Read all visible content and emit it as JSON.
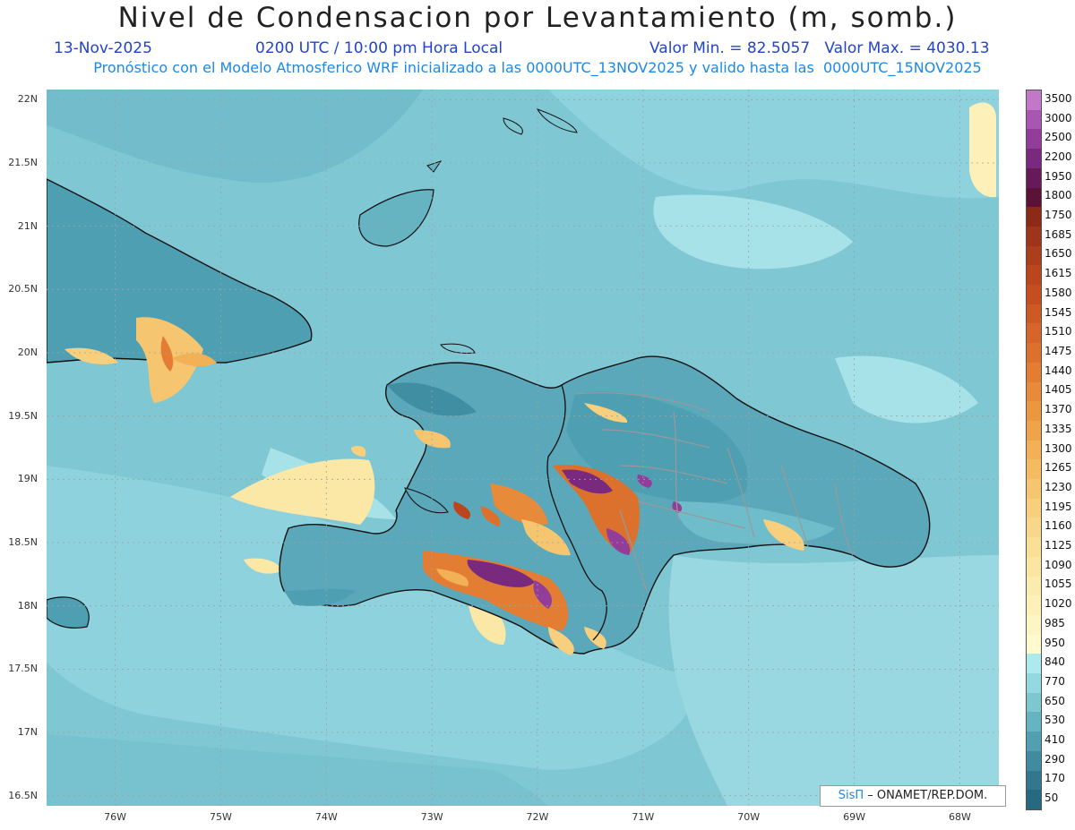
{
  "header": {
    "title": "Nivel de Condensacion por Levantamiento (m, somb.)",
    "date": "13-Nov-2025",
    "time": "0200 UTC / 10:00 pm Hora Local",
    "minmax": "Valor Min. = 82.5057   Valor Max. = 4030.13",
    "forecast": "Pronóstico con el Modelo Atmosferico WRF inicializado a las 0000UTC_13NOV2025 y valido hasta las  0000UTC_15NOV2025"
  },
  "map": {
    "lat_labels": [
      "22N",
      "21.5N",
      "21N",
      "20.5N",
      "20N",
      "19.5N",
      "19N",
      "18.5N",
      "18N",
      "17.5N",
      "17N",
      "16.5N"
    ],
    "lon_labels": [
      "76W",
      "75W",
      "74W",
      "73W",
      "72W",
      "71W",
      "70W",
      "69W",
      "68W"
    ],
    "lat_values": [
      22,
      21.5,
      21,
      20.5,
      20,
      19.5,
      19,
      18.5,
      18,
      17.5,
      17,
      16.5
    ],
    "lon_values": [
      -76,
      -75,
      -74,
      -73,
      -72,
      -71,
      -70,
      -69,
      -68
    ]
  },
  "colorbar": {
    "labels": [
      "3500",
      "3000",
      "2500",
      "2200",
      "1950",
      "1800",
      "1750",
      "1685",
      "1650",
      "1615",
      "1580",
      "1545",
      "1510",
      "1475",
      "1440",
      "1405",
      "1370",
      "1335",
      "1300",
      "1265",
      "1230",
      "1195",
      "1160",
      "1125",
      "1090",
      "1055",
      "1020",
      "985",
      "950",
      "840",
      "770",
      "650",
      "530",
      "410",
      "290",
      "170",
      "50"
    ],
    "colors": [
      "#c277c8",
      "#a955b2",
      "#913d99",
      "#7a2a7e",
      "#661a5a",
      "#5c1236",
      "#8a2a17",
      "#9e341a",
      "#ad3e1c",
      "#bb461e",
      "#c54e21",
      "#cd5a25",
      "#d5652a",
      "#dc712e",
      "#e27d33",
      "#e78a3a",
      "#eb9742",
      "#efa44c",
      "#f2b057",
      "#f4bb63",
      "#f6c56f",
      "#f8cf7d",
      "#f9d78a",
      "#fadf97",
      "#fbe5a3",
      "#fcebae",
      "#fdf0b9",
      "#fef5c4",
      "#fffbcf",
      "#aee9ee",
      "#95d9e0",
      "#7dc7d1",
      "#66b4c2",
      "#529fb1",
      "#418ba0",
      "#32778f",
      "#266a81"
    ]
  },
  "credit": {
    "brand": "SisΠ",
    "org": " – ONAMET/REP.DOM."
  }
}
